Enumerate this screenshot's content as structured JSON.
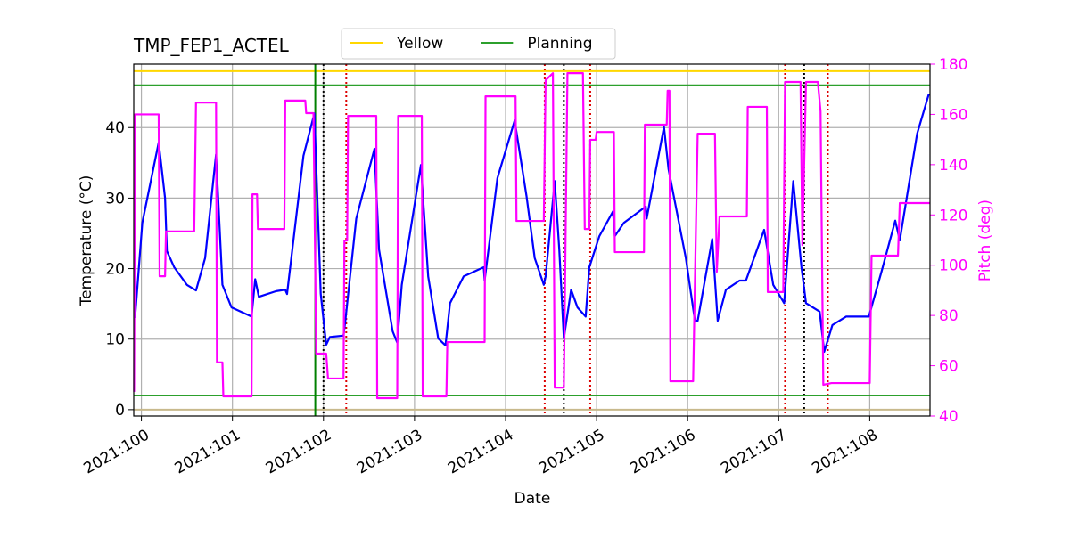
{
  "chart_data": {
    "type": "line",
    "title": "TMP_FEP1_ACTEL",
    "x_label": "Date",
    "y_label": "Temperature (°C)",
    "y2_label": "Pitch (deg)",
    "xlim": [
      99.916,
      108.662
    ],
    "xticks": [
      {
        "value": 100,
        "label": "2021:100"
      },
      {
        "value": 101,
        "label": "2021:101"
      },
      {
        "value": 102,
        "label": "2021:102"
      },
      {
        "value": 103,
        "label": "2021:103"
      },
      {
        "value": 104,
        "label": "2021:104"
      },
      {
        "value": 105,
        "label": "2021:105"
      },
      {
        "value": 106,
        "label": "2021:106"
      },
      {
        "value": 107,
        "label": "2021:107"
      },
      {
        "value": 108,
        "label": "2021:108"
      }
    ],
    "ylim": [
      -0.9,
      49
    ],
    "yticks": [
      0,
      10,
      20,
      30,
      40
    ],
    "y2lim": [
      40,
      180
    ],
    "y2ticks": [
      40,
      60,
      80,
      100,
      120,
      140,
      160,
      180
    ],
    "y2_color": "#ff00ff",
    "grid": true,
    "legend": "upper center",
    "series": [
      {
        "color": "#0000ff",
        "x": [
          99.93,
          100.01,
          100.19,
          100.26,
          100.28,
          100.36,
          100.5,
          100.6,
          100.7,
          100.82,
          100.89,
          100.99,
          101.21,
          101.25,
          101.29,
          101.48,
          101.58,
          101.6,
          101.78,
          101.9,
          101.97,
          102.03,
          102.07,
          102.22,
          102.24,
          102.36,
          102.56,
          102.61,
          102.76,
          102.81,
          102.86,
          103.07,
          103.15,
          103.26,
          103.34,
          103.39,
          103.54,
          103.76,
          103.77,
          103.91,
          104.1,
          104.23,
          104.32,
          104.42,
          104.44,
          104.54,
          104.59,
          104.64,
          104.72,
          104.79,
          104.88,
          104.92,
          105.03,
          105.18,
          105.2,
          105.3,
          105.54,
          105.55,
          105.74,
          105.79,
          105.98,
          106.08,
          106.11,
          106.27,
          106.33,
          106.42,
          106.57,
          106.64,
          106.84,
          106.94,
          107.06,
          107.16,
          107.25,
          107.3,
          107.45,
          107.5,
          107.59,
          107.74,
          107.99,
          108.13,
          108.28,
          108.33,
          108.52,
          108.65
        ],
        "values": [
          13,
          26.5,
          37.9,
          30,
          22.5,
          20.2,
          17.7,
          16.9,
          21.5,
          36.2,
          17.7,
          14.5,
          13.2,
          18.5,
          16,
          16.8,
          17,
          16.4,
          36,
          42,
          16.4,
          9.2,
          10.3,
          10.5,
          12.6,
          27.1,
          37,
          22.7,
          11.1,
          9.5,
          17.7,
          34.7,
          18.9,
          10.1,
          9.1,
          15.1,
          18.9,
          20.2,
          18.3,
          32.8,
          41,
          30.3,
          21.5,
          17.7,
          18.9,
          32.4,
          22.7,
          10.1,
          17,
          14.5,
          13.2,
          20.2,
          24.6,
          28.1,
          24.6,
          26.5,
          28.8,
          27.1,
          40.1,
          34.1,
          21.5,
          12.6,
          12.6,
          24.2,
          12.6,
          17,
          18.3,
          18.3,
          25.5,
          17.7,
          15.1,
          32.4,
          20.2,
          15.1,
          13.9,
          8.2,
          12,
          13.2,
          13.2,
          19.6,
          26.8,
          24,
          39.1,
          44.8
        ]
      },
      {
        "color": "#ff00ff",
        "axis": "y2",
        "x": [
          99.92,
          99.93,
          100.19,
          100.2,
          100.26,
          100.27,
          100.58,
          100.6,
          100.82,
          100.83,
          100.89,
          100.9,
          101.21,
          101.22,
          101.27,
          101.28,
          101.57,
          101.58,
          101.8,
          101.81,
          101.89,
          101.92,
          102.03,
          102.05,
          102.22,
          102.23,
          102.26,
          102.27,
          102.58,
          102.59,
          102.81,
          102.82,
          103.08,
          103.09,
          103.35,
          103.36,
          103.77,
          103.78,
          104.11,
          104.12,
          104.42,
          104.44,
          104.52,
          104.54,
          104.64,
          104.68,
          104.85,
          104.87,
          104.92,
          104.93,
          104.99,
          105.0,
          105.19,
          105.2,
          105.52,
          105.53,
          105.77,
          105.78,
          105.8,
          105.81,
          106.06,
          106.11,
          106.3,
          106.32,
          106.35,
          106.65,
          106.66,
          106.87,
          106.88,
          107.05,
          107.07,
          107.24,
          107.26,
          107.3,
          107.43,
          107.46,
          107.49,
          107.58,
          108.0,
          108.02,
          108.31,
          108.33,
          108.66
        ],
        "values": [
          49.6,
          160,
          160,
          95.6,
          95.6,
          113.4,
          113.4,
          164.7,
          164.7,
          61.3,
          61.3,
          47.8,
          47.8,
          128.2,
          128.2,
          114.4,
          114.4,
          165.5,
          165.5,
          160.5,
          160.5,
          64.8,
          64.8,
          54.9,
          54.9,
          109.8,
          109.8,
          159.4,
          159.4,
          47.1,
          47.1,
          159.4,
          159.4,
          47.8,
          47.8,
          69.4,
          69.4,
          167.2,
          167.2,
          117.6,
          117.6,
          173.6,
          176.4,
          51.3,
          51.3,
          176.4,
          176.4,
          114.4,
          114.4,
          149.9,
          149.9,
          153,
          153,
          105.2,
          105.2,
          155.9,
          155.9,
          169.4,
          169.4,
          53.8,
          53.8,
          152.3,
          152.3,
          97.4,
          119.4,
          119.4,
          163,
          163,
          89.3,
          89.3,
          172.9,
          172.9,
          108,
          172.9,
          172.9,
          161.2,
          52.4,
          53.1,
          53.1,
          103.8,
          103.8,
          124.7,
          124.7
        ]
      }
    ],
    "hlines": [
      {
        "name": "Yellow",
        "color": "#ffd700",
        "values": [
          48
        ]
      },
      {
        "name": "Planning",
        "color": "#2ca02c",
        "values": [
          46,
          2
        ]
      },
      {
        "color": "#c8b98c",
        "values": [
          0
        ]
      }
    ],
    "vlines": [
      {
        "color": "#008000",
        "style": "solid",
        "values": [
          101.91
        ]
      },
      {
        "color": "#000000",
        "style": "dotted",
        "values": [
          102.0,
          104.64,
          107.28
        ]
      },
      {
        "color": "#dd0000",
        "style": "dotted",
        "values": [
          102.25,
          104.43,
          104.93,
          107.07,
          107.54
        ]
      }
    ]
  }
}
